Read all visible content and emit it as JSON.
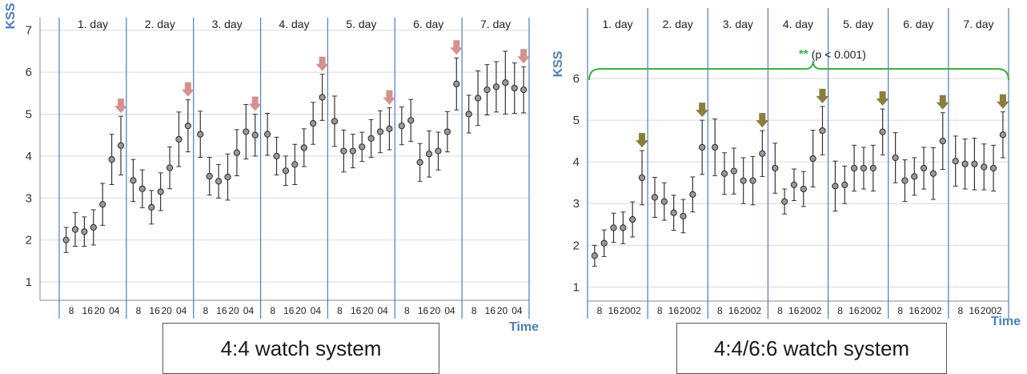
{
  "chart_data": [
    {
      "type": "line-errorbar",
      "ylabel": "KSS",
      "xlabel": "Time",
      "ylim": [
        0.6,
        7.3
      ],
      "yticks": [
        1,
        2,
        3,
        4,
        5,
        6,
        7
      ],
      "grid": true,
      "caption": "4:4 watch system",
      "days": [
        "1. day",
        "2. day",
        "3. day",
        "4. day",
        "5. day",
        "6. day",
        "7. day"
      ],
      "x_tick_labels": [
        "8",
        "16",
        "20",
        "04",
        "8",
        "16",
        "20",
        "04",
        "8",
        "16",
        "20",
        "04",
        "8",
        "16",
        "20",
        "04",
        "8",
        "16",
        "20",
        "04",
        "8",
        "16",
        "20",
        "04",
        "8",
        "16",
        "20",
        "04"
      ],
      "marker_color": "#d4918e",
      "series": [
        {
          "values": [
            [
              2.0,
              2.25,
              2.2,
              2.3,
              2.85,
              3.92,
              4.25
            ],
            [
              3.42,
              3.22,
              2.78,
              3.15,
              3.72,
              4.4,
              4.72
            ],
            [
              4.52,
              3.52,
              3.4,
              3.5,
              4.08,
              4.58,
              4.5
            ],
            [
              4.52,
              4.0,
              3.65,
              3.8,
              4.2,
              4.78,
              5.4
            ],
            [
              4.83,
              4.12,
              4.12,
              4.22,
              4.42,
              4.58,
              4.65
            ],
            [
              4.72,
              4.85,
              3.85,
              4.05,
              4.12,
              4.58,
              5.72
            ],
            [
              5.0,
              5.38,
              5.58,
              5.65,
              5.75,
              5.62,
              5.58
            ]
          ],
          "errors": [
            [
              0.3,
              0.4,
              0.35,
              0.42,
              0.5,
              0.6,
              0.7
            ],
            [
              0.5,
              0.45,
              0.4,
              0.45,
              0.5,
              0.65,
              0.62
            ],
            [
              0.55,
              0.45,
              0.4,
              0.55,
              0.55,
              0.65,
              0.5
            ],
            [
              0.5,
              0.45,
              0.35,
              0.48,
              0.45,
              0.5,
              0.55
            ],
            [
              0.6,
              0.5,
              0.4,
              0.35,
              0.45,
              0.5,
              0.5
            ],
            [
              0.45,
              0.5,
              0.45,
              0.55,
              0.45,
              0.48,
              0.62
            ],
            [
              0.45,
              0.65,
              0.6,
              0.6,
              0.75,
              0.6,
              0.55
            ]
          ],
          "arrows_at": [
            6,
            13,
            20,
            27,
            34,
            41,
            48
          ]
        }
      ]
    },
    {
      "type": "line-errorbar",
      "ylabel": "KSS",
      "xlabel": "Time",
      "ylim": [
        0.7,
        6.5
      ],
      "yticks": [
        1,
        2,
        3,
        4,
        5,
        6
      ],
      "grid": true,
      "caption": "4:4/6:6 watch system",
      "days": [
        "1. day",
        "2. day",
        "3. day",
        "4. day",
        "5. day",
        "6. day",
        "7. day"
      ],
      "x_tick_labels": [
        "8",
        "16",
        "20",
        "02",
        "8",
        "16",
        "20",
        "02",
        "8",
        "16",
        "20",
        "02",
        "8",
        "16",
        "20",
        "02",
        "8",
        "16",
        "20",
        "02",
        "8",
        "16",
        "20",
        "02",
        "8",
        "16",
        "20",
        "02"
      ],
      "significance": {
        "stars": "**",
        "text": "(p < 0.001)",
        "color": "#3cb043"
      },
      "marker_color": "#8b7d3c",
      "series": [
        {
          "values": [
            [
              1.75,
              2.05,
              2.42,
              2.42,
              2.62,
              3.62
            ],
            [
              3.15,
              3.05,
              2.78,
              2.7,
              3.22,
              4.35
            ],
            [
              4.35,
              3.72,
              3.78,
              3.55,
              3.55,
              4.2
            ],
            [
              3.85,
              3.05,
              3.45,
              3.35,
              4.08,
              4.75
            ],
            [
              3.42,
              3.45,
              3.85,
              3.85,
              3.85,
              4.72
            ],
            [
              4.1,
              3.55,
              3.65,
              3.85,
              3.72,
              4.5
            ],
            [
              4.02,
              3.95,
              3.95,
              3.88,
              3.85,
              4.65
            ]
          ],
          "errors": [
            [
              0.25,
              0.32,
              0.35,
              0.38,
              0.42,
              0.65
            ],
            [
              0.48,
              0.45,
              0.42,
              0.4,
              0.42,
              0.65
            ],
            [
              0.68,
              0.5,
              0.55,
              0.55,
              0.58,
              0.55
            ],
            [
              0.6,
              0.3,
              0.38,
              0.42,
              0.68,
              0.58
            ],
            [
              0.6,
              0.45,
              0.55,
              0.5,
              0.55,
              0.55
            ],
            [
              0.6,
              0.5,
              0.45,
              0.5,
              0.62,
              0.68
            ],
            [
              0.6,
              0.6,
              0.62,
              0.55,
              0.55,
              0.55
            ]
          ],
          "arrows_at": [
            5,
            11,
            17,
            23,
            29,
            35,
            41
          ]
        }
      ]
    }
  ]
}
